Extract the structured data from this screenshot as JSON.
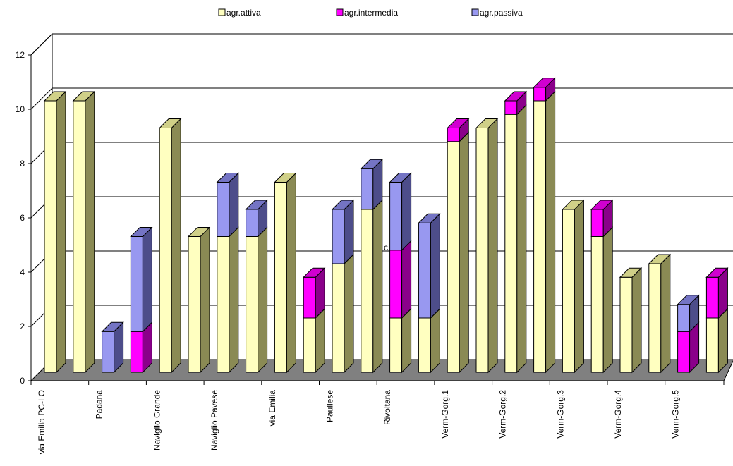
{
  "chart_data": {
    "type": "bar",
    "stacked": true,
    "three_d": true,
    "title": "",
    "xlabel": "",
    "ylabel": "",
    "ylim": [
      0,
      12
    ],
    "yticks": [
      0,
      2,
      4,
      6,
      8,
      10,
      12
    ],
    "grid": true,
    "legend_position": "top",
    "bars": [
      {
        "attiva": 10,
        "intermedia": 0,
        "passiva": 0
      },
      {
        "attiva": 10,
        "intermedia": 0,
        "passiva": 0
      },
      {
        "attiva": 0,
        "intermedia": 0,
        "passiva": 1.5
      },
      {
        "attiva": 0,
        "intermedia": 1.5,
        "passiva": 3.5
      },
      {
        "attiva": 9,
        "intermedia": 0,
        "passiva": 0
      },
      {
        "attiva": 5,
        "intermedia": 0,
        "passiva": 0
      },
      {
        "attiva": 5,
        "intermedia": 0,
        "passiva": 2
      },
      {
        "attiva": 5,
        "intermedia": 0,
        "passiva": 1
      },
      {
        "attiva": 7,
        "intermedia": 0,
        "passiva": 0
      },
      {
        "attiva": 2,
        "intermedia": 1.5,
        "passiva": 0
      },
      {
        "attiva": 4,
        "intermedia": 0,
        "passiva": 2
      },
      {
        "attiva": 6,
        "intermedia": 0,
        "passiva": 1.5
      },
      {
        "attiva": 2,
        "intermedia": 2.5,
        "passiva": 2.5
      },
      {
        "attiva": 2,
        "intermedia": 0,
        "passiva": 3.5
      },
      {
        "attiva": 8.5,
        "intermedia": 0.5,
        "passiva": 0
      },
      {
        "attiva": 9,
        "intermedia": 0,
        "passiva": 0
      },
      {
        "attiva": 9.5,
        "intermedia": 0.5,
        "passiva": 0
      },
      {
        "attiva": 10,
        "intermedia": 0.5,
        "passiva": 0
      },
      {
        "attiva": 6,
        "intermedia": 0,
        "passiva": 0
      },
      {
        "attiva": 5,
        "intermedia": 1,
        "passiva": 0
      },
      {
        "attiva": 3.5,
        "intermedia": 0,
        "passiva": 0
      },
      {
        "attiva": 4,
        "intermedia": 0,
        "passiva": 0
      },
      {
        "attiva": 0,
        "intermedia": 1.5,
        "passiva": 1
      },
      {
        "attiva": 2,
        "intermedia": 1.5,
        "passiva": 0
      }
    ],
    "categories": [
      "via Emilia  PC-LO",
      "Padana",
      "Naviglio Grande",
      "Naviglio Pavese",
      "via Emilia",
      "Paullese",
      "Rivoltana",
      "Verm-Gorg.1",
      "Verm-Gorg.2",
      "Verm-Gorg.3",
      "Verm-Gorg.4",
      "Verm-Gorg.5"
    ],
    "series": [
      {
        "key": "attiva",
        "name": "agr.attiva",
        "color": "#ffffc0",
        "side_color": "#8a8a54",
        "top_color": "#d0d088"
      },
      {
        "key": "intermedia",
        "name": "agr.intermedia",
        "color": "#ff00ff",
        "side_color": "#8a008a",
        "top_color": "#d000d0"
      },
      {
        "key": "passiva",
        "name": "agr.passiva",
        "color": "#9898f0",
        "side_color": "#4d4d8a",
        "top_color": "#7474c4"
      }
    ],
    "annotations": [
      "c."
    ],
    "floor_color": "#808080",
    "wall_color": "#ffffff"
  }
}
